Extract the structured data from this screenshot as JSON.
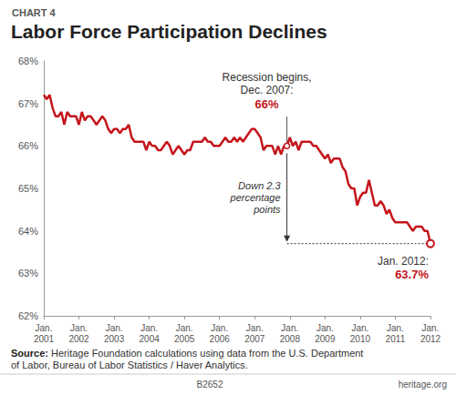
{
  "chart_data": {
    "type": "line",
    "supertitle": "CHART 4",
    "title": "Labor Force Participation Declines",
    "categories": [
      "Jan.\n2001",
      null,
      null,
      null,
      null,
      null,
      null,
      null,
      null,
      null,
      null,
      null,
      "Jan.\n2002",
      null,
      null,
      null,
      null,
      null,
      null,
      null,
      null,
      null,
      null,
      null,
      "Jan.\n2003",
      null,
      null,
      null,
      null,
      null,
      null,
      null,
      null,
      null,
      null,
      null,
      "Jan.\n2004",
      null,
      null,
      null,
      null,
      null,
      null,
      null,
      null,
      null,
      null,
      null,
      "Jan.\n2005",
      null,
      null,
      null,
      null,
      null,
      null,
      null,
      null,
      null,
      null,
      null,
      "Jan.\n2006",
      null,
      null,
      null,
      null,
      null,
      null,
      null,
      null,
      null,
      null,
      null,
      "Jan.\n2007",
      null,
      null,
      null,
      null,
      null,
      null,
      null,
      null,
      null,
      null,
      null,
      "Jan.\n2008",
      null,
      null,
      null,
      null,
      null,
      null,
      null,
      null,
      null,
      null,
      null,
      "Jan.\n2009",
      null,
      null,
      null,
      null,
      null,
      null,
      null,
      null,
      null,
      null,
      null,
      "Jan.\n2010",
      null,
      null,
      null,
      null,
      null,
      null,
      null,
      null,
      null,
      null,
      null,
      "Jan.\n2011",
      null,
      null,
      null,
      null,
      null,
      null,
      null,
      null,
      null,
      null,
      null,
      "Jan.\n2012"
    ],
    "values": [
      67.2,
      67.1,
      67.2,
      66.9,
      66.7,
      66.7,
      66.8,
      66.5,
      66.8,
      66.7,
      66.7,
      66.7,
      66.5,
      66.8,
      66.6,
      66.7,
      66.7,
      66.6,
      66.5,
      66.6,
      66.7,
      66.6,
      66.4,
      66.3,
      66.4,
      66.4,
      66.3,
      66.4,
      66.4,
      66.5,
      66.2,
      66.1,
      66.1,
      66.1,
      66.1,
      65.9,
      66.1,
      66.0,
      66.0,
      65.9,
      65.9,
      66.0,
      66.1,
      66.0,
      65.8,
      65.9,
      66.0,
      65.9,
      65.8,
      65.9,
      65.9,
      66.1,
      66.1,
      66.1,
      66.1,
      66.2,
      66.1,
      66.1,
      66.0,
      66.0,
      66.0,
      66.1,
      66.2,
      66.1,
      66.1,
      66.2,
      66.1,
      66.2,
      66.1,
      66.2,
      66.3,
      66.4,
      66.4,
      66.3,
      66.2,
      65.9,
      66.0,
      66.0,
      66.0,
      65.8,
      66.0,
      65.8,
      66.0,
      66.0,
      66.2,
      66.0,
      66.1,
      65.9,
      66.1,
      66.1,
      66.1,
      66.1,
      66.0,
      66.0,
      65.9,
      65.8,
      65.7,
      65.8,
      65.6,
      65.7,
      65.7,
      65.7,
      65.5,
      65.4,
      65.1,
      65.0,
      65.0,
      64.6,
      64.8,
      64.9,
      64.9,
      65.2,
      64.9,
      64.6,
      64.6,
      64.7,
      64.6,
      64.4,
      64.5,
      64.3,
      64.2,
      64.2,
      64.2,
      64.2,
      64.2,
      64.1,
      64.0,
      64.1,
      64.1,
      64.1,
      64.0,
      64.0,
      63.7
    ],
    "color": "#c4161c",
    "ylim": [
      62,
      68
    ],
    "yticks": [
      {
        "value": 62,
        "label": "62%"
      },
      {
        "value": 63,
        "label": "63%"
      },
      {
        "value": 64,
        "label": "64%"
      },
      {
        "value": 65,
        "label": "65%"
      },
      {
        "value": 66,
        "label": "66%"
      },
      {
        "value": 67,
        "label": "67%"
      },
      {
        "value": 68,
        "label": "68%"
      }
    ],
    "grid": false,
    "annotations": {
      "start": {
        "text": "Recession begins,\nDec. 2007:",
        "label": "66%",
        "value": 66,
        "at": 83
      },
      "change": {
        "text": "Down 2.3\npercentage\npoints",
        "value": 2.3
      },
      "end": {
        "text": "Jan. 2012:",
        "label": "63.7%",
        "value": 63.7,
        "at": 132
      }
    },
    "source_label": "Source:",
    "source": "Heritage Foundation calculations using data from the U.S. Department of Labor, Bureau of Labor Statistics / Haver Analytics.",
    "code": "B2652",
    "publisher": "heritage.org"
  }
}
